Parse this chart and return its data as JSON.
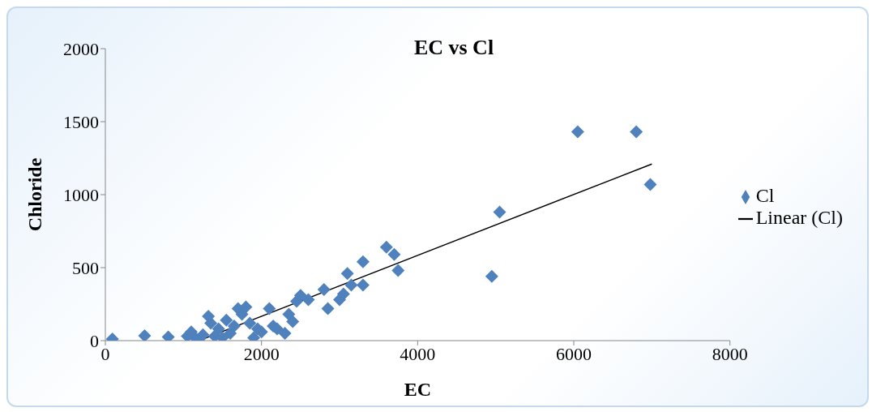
{
  "chart_data": {
    "type": "scatter",
    "title": "EC vs Cl",
    "xlabel": "EC",
    "ylabel": "Chloride",
    "xlim": [
      0,
      8000
    ],
    "xticks": [
      0,
      2000,
      4000,
      6000,
      8000
    ],
    "ylim": [
      0,
      2000
    ],
    "yticks": [
      0,
      500,
      1000,
      1500,
      2000
    ],
    "grid": false,
    "legend": "right",
    "marker": "diamond",
    "series": [
      {
        "name": "Cl",
        "color": "#4f81bd",
        "x": [
          90,
          503,
          806,
          1050,
          1100,
          1150,
          1200,
          1250,
          1320,
          1350,
          1400,
          1450,
          1500,
          1550,
          1600,
          1650,
          1700,
          1750,
          1800,
          1850,
          1900,
          1950,
          2000,
          2100,
          2150,
          2200,
          2300,
          2350,
          2400,
          2450,
          2500,
          2600,
          2800,
          2850,
          3000,
          3050,
          3100,
          3150,
          3300,
          3300,
          3600,
          3700,
          3750,
          4950,
          5050,
          6050,
          6800,
          6980
        ],
        "values": [
          11,
          34,
          25,
          30,
          60,
          20,
          10,
          40,
          167,
          120,
          30,
          80,
          20,
          140,
          50,
          100,
          220,
          180,
          230,
          120,
          20,
          80,
          60,
          220,
          100,
          80,
          50,
          180,
          130,
          270,
          310,
          280,
          350,
          220,
          280,
          320,
          460,
          380,
          540,
          380,
          640,
          590,
          480,
          440,
          880,
          1430,
          1430,
          1070
        ]
      },
      {
        "name": "Linear (Cl)",
        "type": "line",
        "color": "#000000",
        "line_style": "solid",
        "marker": "none",
        "x": [
          1200,
          7000
        ],
        "values": [
          0,
          1210
        ]
      }
    ]
  }
}
